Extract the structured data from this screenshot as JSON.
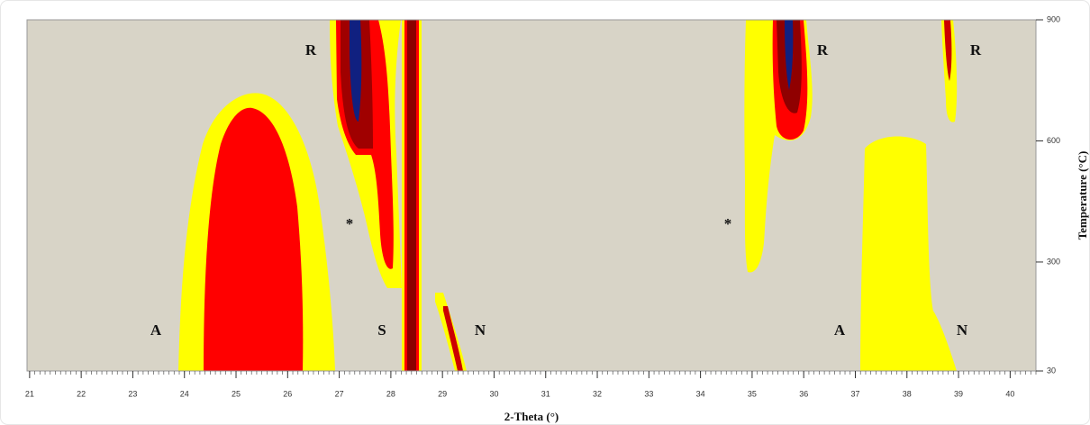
{
  "chart_data": {
    "type": "contour",
    "xlabel": "2-Theta (°)",
    "ylabel": "Temperature (°C)",
    "xlim": [
      20.95,
      40.5
    ],
    "xticks": [
      21,
      22,
      23,
      24,
      25,
      26,
      27,
      28,
      29,
      30,
      31,
      32,
      33,
      34,
      35,
      36,
      37,
      38,
      39,
      40
    ],
    "x_minor_step": 0.1,
    "ylim": [
      30,
      900
    ],
    "yticks": [
      30,
      300,
      600,
      900
    ],
    "annotations": [
      "R",
      "R",
      "R",
      "A",
      "S",
      "N",
      "A",
      "N",
      "*",
      "*"
    ]
  }
}
